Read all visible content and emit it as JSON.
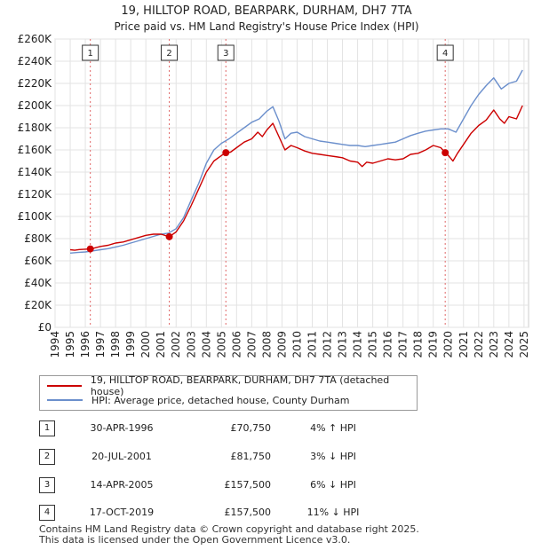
{
  "chart_data": {
    "type": "line",
    "title": "19, HILLTOP ROAD, BEARPARK, DURHAM, DH7 7TA",
    "subtitle": "Price paid vs. HM Land Registry's House Price Index (HPI)",
    "xlim": [
      1994,
      2025.3
    ],
    "ylim": [
      0,
      260000
    ],
    "x_ticks": [
      "1994",
      "1995",
      "1996",
      "1997",
      "1998",
      "1999",
      "2000",
      "2001",
      "2002",
      "2003",
      "2004",
      "2005",
      "2006",
      "2007",
      "2008",
      "2009",
      "2010",
      "2011",
      "2012",
      "2013",
      "2014",
      "2015",
      "2016",
      "2017",
      "2018",
      "2019",
      "2020",
      "2021",
      "2022",
      "2023",
      "2024",
      "2025"
    ],
    "y_ticks": [
      "£0",
      "£20K",
      "£40K",
      "£60K",
      "£80K",
      "£100K",
      "£120K",
      "£140K",
      "£160K",
      "£180K",
      "£200K",
      "£220K",
      "£240K",
      "£260K"
    ],
    "series": [
      {
        "name": "19, HILLTOP ROAD, BEARPARK, DURHAM, DH7 7TA (detached house)",
        "color": "#cc0000",
        "x": [
          1995.0,
          1995.3,
          1995.6,
          1996.0,
          1996.33,
          1996.6,
          1997.0,
          1997.5,
          1998.0,
          1998.5,
          1999.0,
          1999.5,
          2000.0,
          2000.5,
          2001.0,
          2001.55,
          2002.0,
          2002.5,
          2003.0,
          2003.5,
          2004.0,
          2004.5,
          2005.0,
          2005.29,
          2005.6,
          2006.0,
          2006.5,
          2007.0,
          2007.4,
          2007.7,
          2008.0,
          2008.4,
          2008.8,
          2009.2,
          2009.6,
          2010.0,
          2010.5,
          2011.0,
          2011.5,
          2012.0,
          2012.5,
          2013.0,
          2013.5,
          2014.0,
          2014.3,
          2014.6,
          2015.0,
          2015.5,
          2016.0,
          2016.5,
          2017.0,
          2017.5,
          2018.0,
          2018.5,
          2019.0,
          2019.5,
          2019.79,
          2020.0,
          2020.3,
          2020.6,
          2021.0,
          2021.5,
          2022.0,
          2022.5,
          2023.0,
          2023.4,
          2023.7,
          2024.0,
          2024.5,
          2024.9
        ],
        "y": [
          70000,
          69500,
          70200,
          70500,
          70750,
          71500,
          73000,
          74000,
          76000,
          77000,
          79000,
          81000,
          83000,
          84000,
          84000,
          81750,
          86000,
          96000,
          110000,
          125000,
          140000,
          150000,
          155000,
          157500,
          158000,
          162000,
          167000,
          170000,
          176000,
          172000,
          178000,
          184000,
          172000,
          160000,
          164000,
          162000,
          159000,
          157000,
          156000,
          155000,
          154000,
          153000,
          150000,
          149000,
          145000,
          149000,
          148000,
          150000,
          152000,
          151000,
          152000,
          156000,
          157000,
          160000,
          164000,
          162000,
          157500,
          155000,
          150000,
          157000,
          165000,
          175000,
          182000,
          187000,
          196000,
          188000,
          184000,
          190000,
          188000,
          200000
        ]
      },
      {
        "name": "HPI: Average price, detached house, County Durham",
        "color": "#6b8fcc",
        "x": [
          1995.0,
          1995.5,
          1996.0,
          1996.5,
          1997.0,
          1997.5,
          1998.0,
          1998.5,
          1999.0,
          1999.5,
          2000.0,
          2000.5,
          2001.0,
          2001.5,
          2002.0,
          2002.5,
          2003.0,
          2003.5,
          2004.0,
          2004.5,
          2005.0,
          2005.5,
          2006.0,
          2006.5,
          2007.0,
          2007.5,
          2008.0,
          2008.4,
          2008.8,
          2009.2,
          2009.6,
          2010.0,
          2010.5,
          2011.0,
          2011.5,
          2012.0,
          2012.5,
          2013.0,
          2013.5,
          2014.0,
          2014.5,
          2015.0,
          2015.5,
          2016.0,
          2016.5,
          2017.0,
          2017.5,
          2018.0,
          2018.5,
          2019.0,
          2019.5,
          2020.0,
          2020.5,
          2021.0,
          2021.5,
          2022.0,
          2022.5,
          2023.0,
          2023.5,
          2024.0,
          2024.5,
          2024.9
        ],
        "y": [
          67000,
          67500,
          68000,
          69000,
          70000,
          71000,
          72500,
          74000,
          76000,
          78000,
          80000,
          82000,
          84000,
          85000,
          89000,
          99000,
          115000,
          130000,
          148000,
          160000,
          166000,
          170000,
          175000,
          180000,
          185000,
          188000,
          195000,
          199000,
          186000,
          170000,
          175000,
          176000,
          172000,
          170000,
          168000,
          167000,
          166000,
          165000,
          164000,
          164000,
          163000,
          164000,
          165000,
          166000,
          167000,
          170000,
          173000,
          175000,
          177000,
          178000,
          179000,
          179000,
          176000,
          188000,
          200000,
          210000,
          218000,
          225000,
          215000,
          220000,
          222000,
          232000
        ]
      }
    ],
    "sale_points": [
      {
        "label": "1",
        "x": 1996.33,
        "y": 70750
      },
      {
        "label": "2",
        "x": 2001.55,
        "y": 81750
      },
      {
        "label": "3",
        "x": 2005.29,
        "y": 157500
      },
      {
        "label": "4",
        "x": 2019.79,
        "y": 157500
      }
    ]
  },
  "legend": {
    "property_label": "19, HILLTOP ROAD, BEARPARK, DURHAM, DH7 7TA (detached house)",
    "hpi_label": "HPI: Average price, detached house, County Durham",
    "property_color": "#cc0000",
    "hpi_color": "#6b8fcc"
  },
  "sales": [
    {
      "num": "1",
      "date": "30-APR-1996",
      "price": "£70,750",
      "hpi": "4% ↑ HPI"
    },
    {
      "num": "2",
      "date": "20-JUL-2001",
      "price": "£81,750",
      "hpi": "3% ↓ HPI"
    },
    {
      "num": "3",
      "date": "14-APR-2005",
      "price": "£157,500",
      "hpi": "6% ↓ HPI"
    },
    {
      "num": "4",
      "date": "17-OCT-2019",
      "price": "£157,500",
      "hpi": "11% ↓ HPI"
    }
  ],
  "footer": {
    "line1": "Contains HM Land Registry data © Crown copyright and database right 2025.",
    "line2": "This data is licensed under the Open Government Licence v3.0."
  }
}
